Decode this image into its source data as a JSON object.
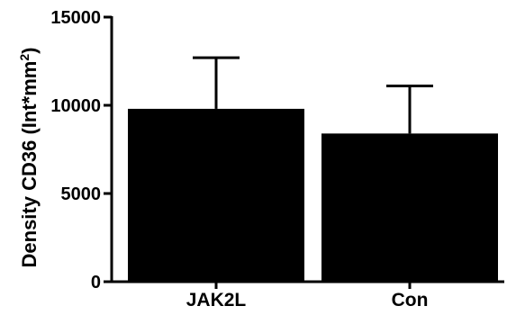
{
  "chart_data": {
    "type": "bar",
    "categories": [
      "JAK2L",
      "Con"
    ],
    "values": [
      9800,
      8400
    ],
    "errors": [
      2900,
      2700
    ],
    "ylabel": {
      "main": "Density CD36 (Int*mm",
      "superscript": "2",
      "close": ")"
    },
    "xlabel": "",
    "ylim": [
      0,
      15000
    ],
    "yticks": [
      0,
      5000,
      10000,
      15000
    ],
    "ytick_labels": [
      "0",
      "5000",
      "10000",
      "15000"
    ],
    "grid": false,
    "legend": "none",
    "bar_color": "#000000",
    "axis_color": "#000000"
  }
}
